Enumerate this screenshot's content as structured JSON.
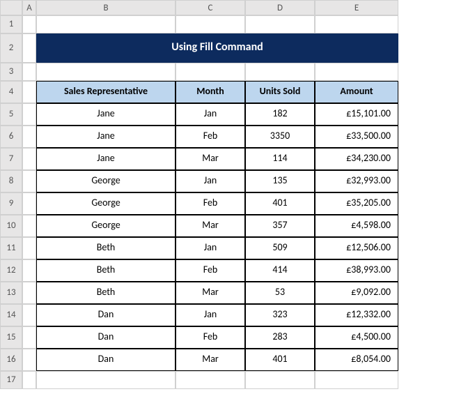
{
  "columns": [
    "",
    "A",
    "B",
    "C",
    "D",
    "E"
  ],
  "rows": [
    "1",
    "2",
    "3",
    "4",
    "5",
    "6",
    "7",
    "8",
    "9",
    "10",
    "11",
    "12",
    "13",
    "14",
    "15",
    "16",
    "17"
  ],
  "title": "Using Fill Command",
  "headers": {
    "rep": "Sales Representative",
    "month": "Month",
    "units": "Units Sold",
    "amount": "Amount"
  },
  "data": [
    {
      "rep": "Jane",
      "month": "Jan",
      "units": "182",
      "amount": "£15,101.00"
    },
    {
      "rep": "Jane",
      "month": "Feb",
      "units": "3350",
      "amount": "£33,500.00"
    },
    {
      "rep": "Jane",
      "month": "Mar",
      "units": "114",
      "amount": "£34,230.00"
    },
    {
      "rep": "George",
      "month": "Jan",
      "units": "135",
      "amount": "£32,993.00"
    },
    {
      "rep": "George",
      "month": "Feb",
      "units": "401",
      "amount": "£35,205.00"
    },
    {
      "rep": "George",
      "month": "Mar",
      "units": "357",
      "amount": "£4,598.00"
    },
    {
      "rep": "Beth",
      "month": "Jan",
      "units": "509",
      "amount": "£12,506.00"
    },
    {
      "rep": "Beth",
      "month": "Feb",
      "units": "414",
      "amount": "£38,993.00"
    },
    {
      "rep": "Beth",
      "month": "Mar",
      "units": "53",
      "amount": "£9,092.00"
    },
    {
      "rep": "Dan",
      "month": "Jan",
      "units": "323",
      "amount": "£12,332.00"
    },
    {
      "rep": "Dan",
      "month": "Feb",
      "units": "283",
      "amount": "£4,500.00"
    },
    {
      "rep": "Dan",
      "month": "Mar",
      "units": "401",
      "amount": "£8,054.00"
    }
  ],
  "colors": {
    "banner_bg": "#0d2b5e",
    "banner_text": "#ffffff",
    "header_bg": "#bdd6ee",
    "grid_header_bg": "#e7e6e6",
    "cell_border": "#000000",
    "grid_border": "#d0d0d0"
  }
}
